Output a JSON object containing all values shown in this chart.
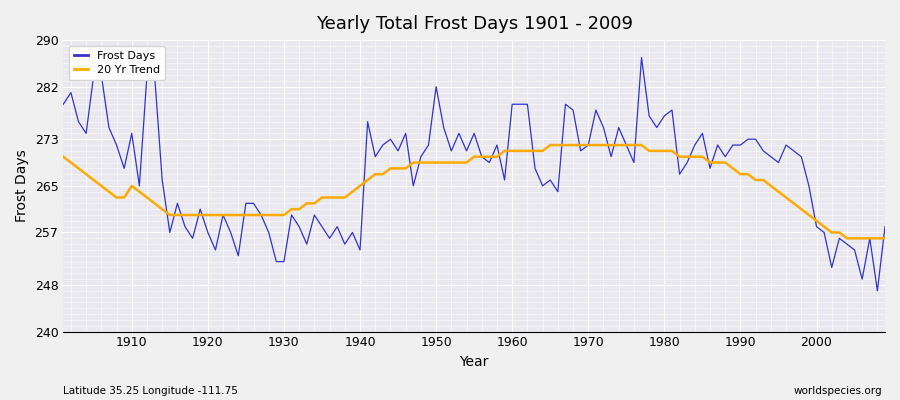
{
  "title": "Yearly Total Frost Days 1901 - 2009",
  "xlabel": "Year",
  "ylabel": "Frost Days",
  "footnote_left": "Latitude 35.25 Longitude -111.75",
  "footnote_right": "worldspecies.org",
  "line_color": "#3333cc",
  "trend_color": "#ffaa00",
  "bg_color": "#e8e8ee",
  "fig_bg_color": "#f0f0f0",
  "ylim": [
    240,
    290
  ],
  "xlim": [
    1901,
    2009
  ],
  "yticks": [
    240,
    248,
    257,
    265,
    273,
    282,
    290
  ],
  "xticks": [
    1910,
    1920,
    1930,
    1940,
    1950,
    1960,
    1970,
    1980,
    1990,
    2000
  ],
  "years": [
    1901,
    1902,
    1903,
    1904,
    1905,
    1906,
    1907,
    1908,
    1909,
    1910,
    1911,
    1912,
    1913,
    1914,
    1915,
    1916,
    1917,
    1918,
    1919,
    1920,
    1921,
    1922,
    1923,
    1924,
    1925,
    1926,
    1927,
    1928,
    1929,
    1930,
    1931,
    1932,
    1933,
    1934,
    1935,
    1936,
    1937,
    1938,
    1939,
    1940,
    1941,
    1942,
    1943,
    1944,
    1945,
    1946,
    1947,
    1948,
    1949,
    1950,
    1951,
    1952,
    1953,
    1954,
    1955,
    1956,
    1957,
    1958,
    1959,
    1960,
    1961,
    1962,
    1963,
    1964,
    1965,
    1966,
    1967,
    1968,
    1969,
    1970,
    1971,
    1972,
    1973,
    1974,
    1975,
    1976,
    1977,
    1978,
    1979,
    1980,
    1981,
    1982,
    1983,
    1984,
    1985,
    1986,
    1987,
    1988,
    1989,
    1990,
    1991,
    1992,
    1993,
    1994,
    1995,
    1996,
    1997,
    1998,
    1999,
    2000,
    2001,
    2002,
    2003,
    2004,
    2005,
    2006,
    2007,
    2008,
    2009
  ],
  "frost_days": [
    279,
    281,
    276,
    274,
    284,
    284,
    275,
    272,
    268,
    274,
    265,
    284,
    284,
    266,
    257,
    262,
    258,
    256,
    261,
    257,
    254,
    260,
    257,
    253,
    262,
    262,
    260,
    257,
    252,
    252,
    260,
    258,
    255,
    260,
    258,
    256,
    258,
    255,
    257,
    254,
    276,
    270,
    272,
    273,
    271,
    274,
    265,
    270,
    272,
    282,
    275,
    271,
    274,
    271,
    274,
    270,
    269,
    272,
    266,
    279,
    279,
    279,
    268,
    265,
    266,
    264,
    279,
    278,
    271,
    272,
    278,
    275,
    270,
    275,
    272,
    269,
    287,
    277,
    275,
    277,
    278,
    267,
    269,
    272,
    274,
    268,
    272,
    270,
    272,
    272,
    273,
    273,
    271,
    270,
    269,
    272,
    271,
    270,
    265,
    258,
    257,
    251,
    256,
    255,
    254,
    249,
    256,
    247,
    258
  ],
  "trend_values": [
    270,
    269,
    268,
    267,
    266,
    265,
    264,
    263,
    263,
    265,
    264,
    263,
    262,
    261,
    260,
    260,
    260,
    260,
    260,
    260,
    260,
    260,
    260,
    260,
    260,
    260,
    260,
    260,
    260,
    260,
    261,
    261,
    262,
    262,
    263,
    263,
    263,
    263,
    264,
    265,
    266,
    267,
    267,
    268,
    268,
    268,
    269,
    269,
    269,
    269,
    269,
    269,
    269,
    269,
    270,
    270,
    270,
    270,
    271,
    271,
    271,
    271,
    271,
    271,
    272,
    272,
    272,
    272,
    272,
    272,
    272,
    272,
    272,
    272,
    272,
    272,
    272,
    271,
    271,
    271,
    271,
    270,
    270,
    270,
    270,
    269,
    269,
    269,
    268,
    267,
    267,
    266,
    266,
    265,
    264,
    263,
    262,
    261,
    260,
    259,
    258,
    257,
    257,
    256,
    256,
    256,
    256,
    256,
    256
  ]
}
